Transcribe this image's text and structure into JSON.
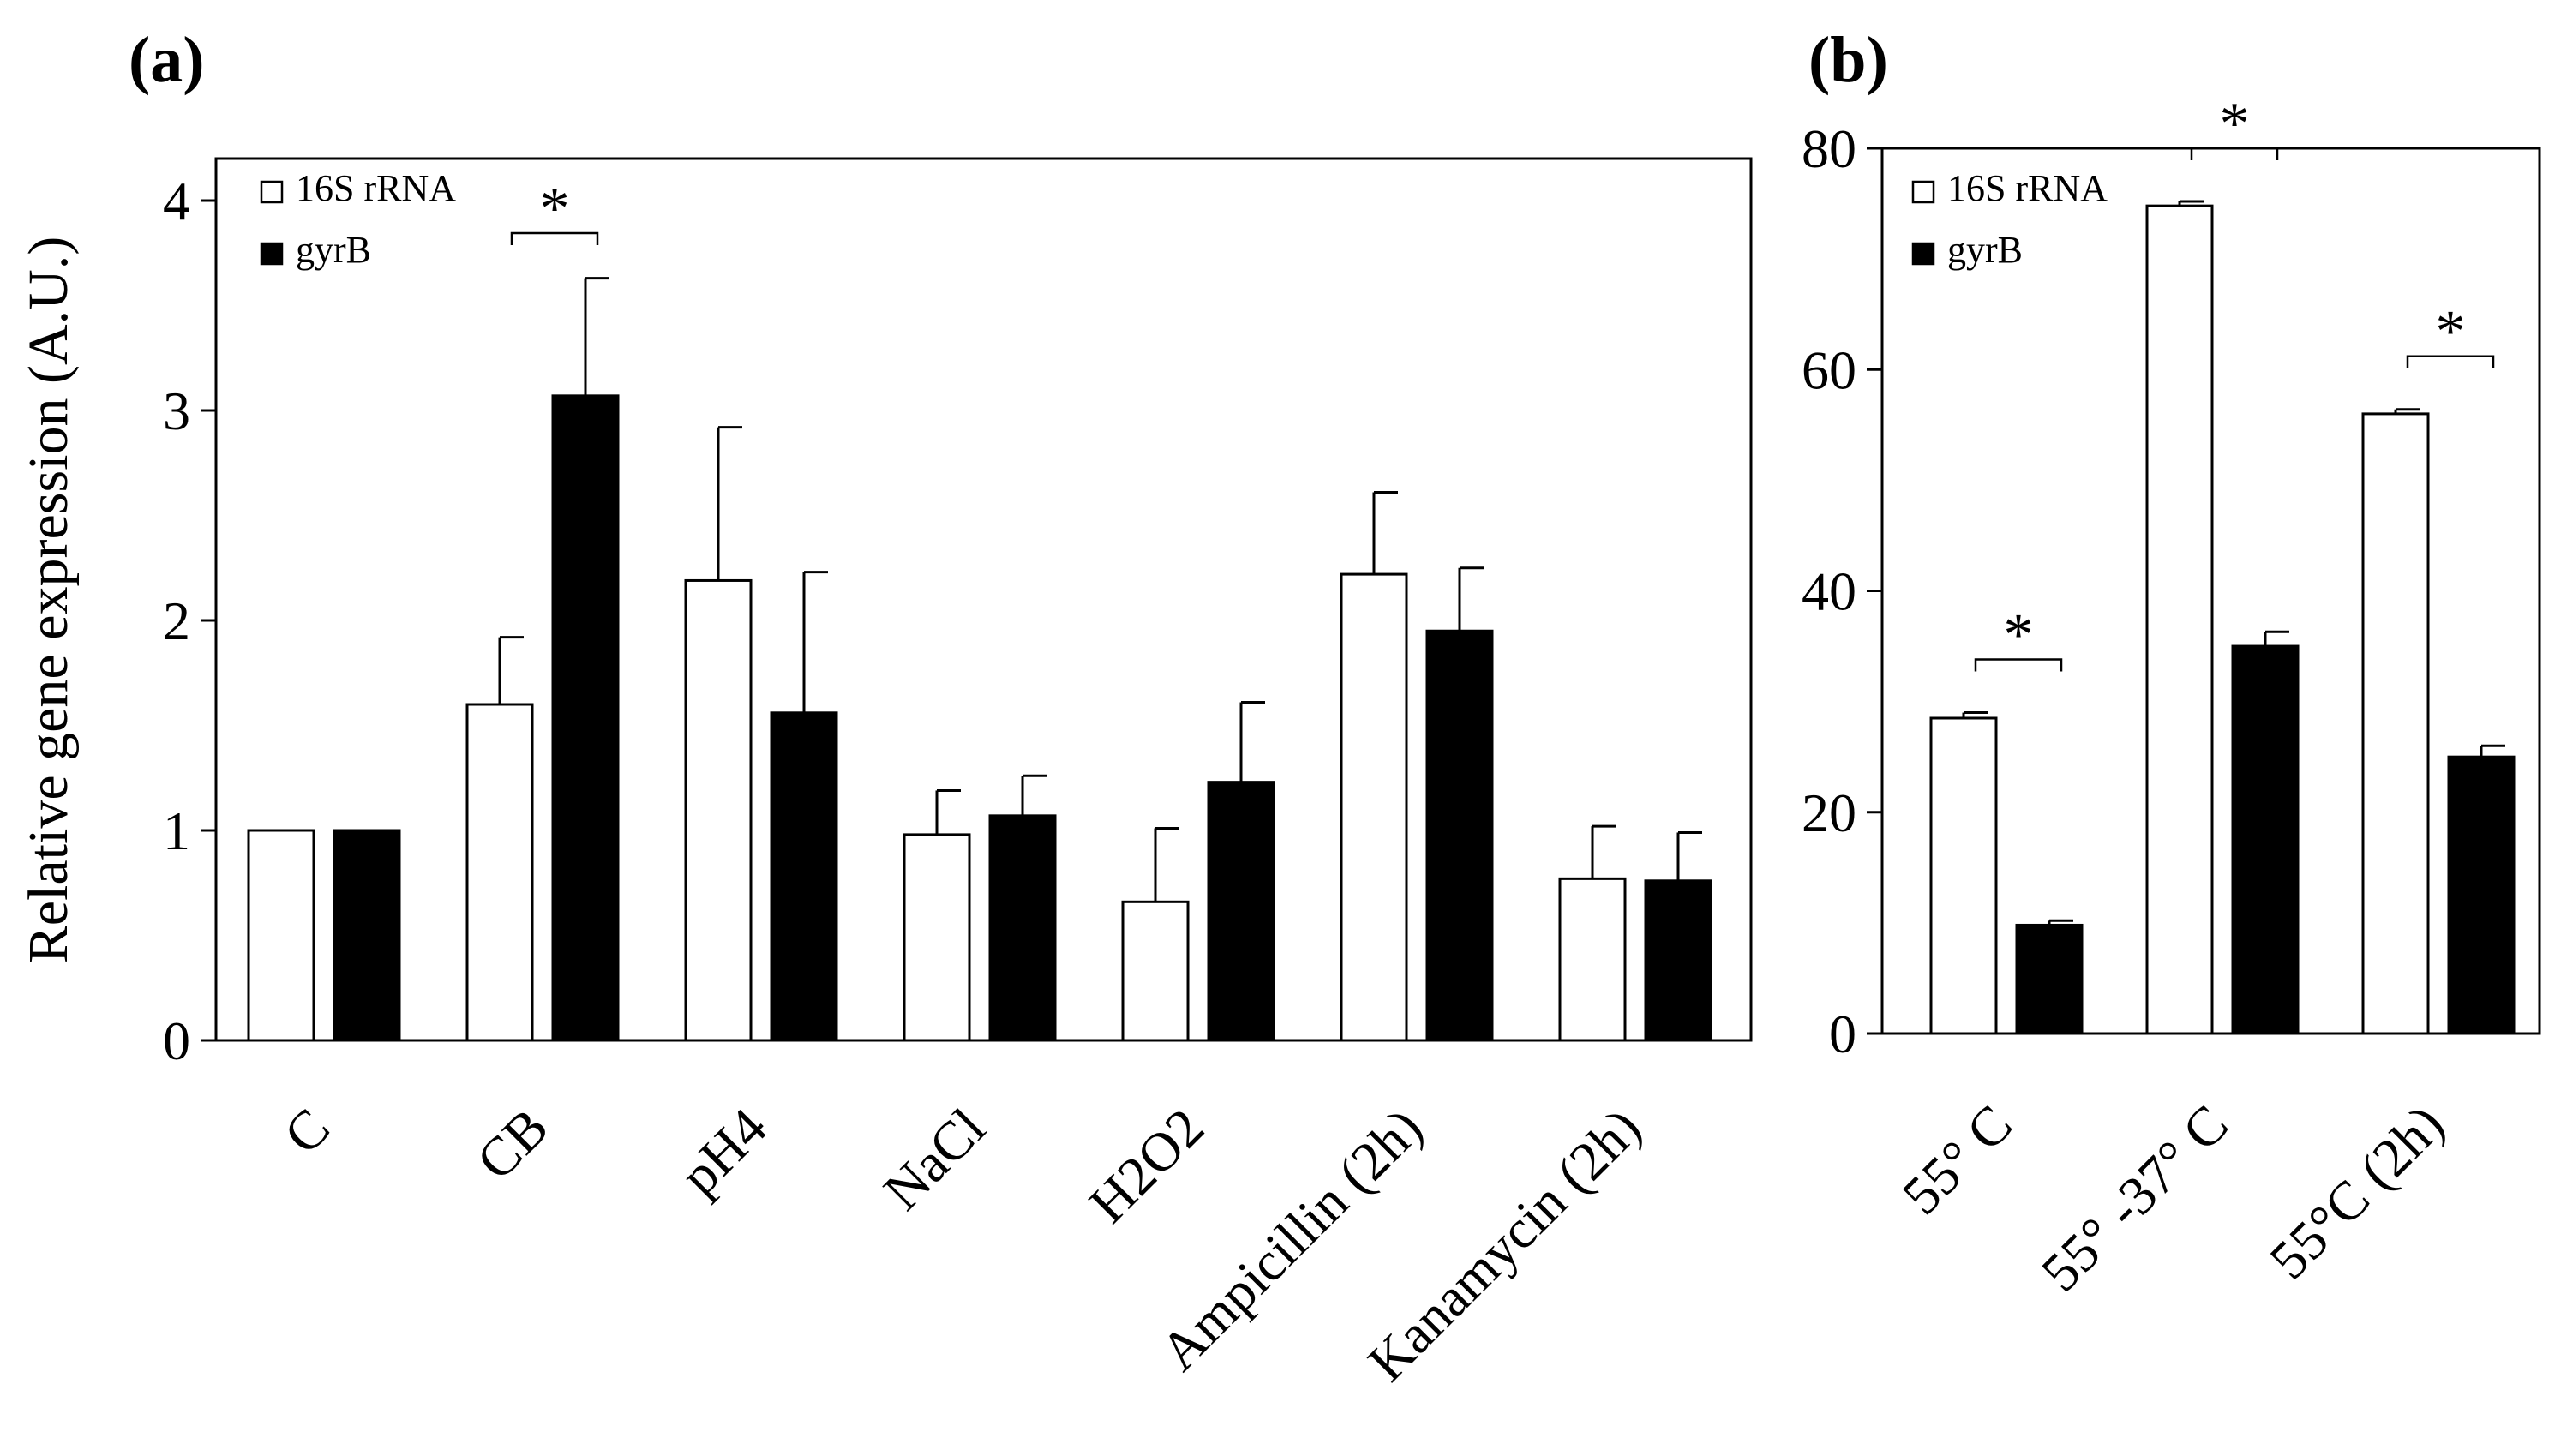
{
  "chart_data": [
    {
      "type": "bar",
      "panel_label": "(a)",
      "title": "",
      "xlabel": "",
      "ylabel": "Relative gene expression (A.U.)",
      "ylim": [
        0,
        4.2
      ],
      "yticks": [
        "0",
        "1",
        "2",
        "3",
        "4"
      ],
      "categories": [
        "C",
        "CB",
        "pH4",
        "NaCl",
        "H2O2",
        "Ampicillin (2h)",
        "Kanamycin (2h)"
      ],
      "series": [
        {
          "name": "16S rRNA",
          "color": "#ffffff",
          "values": [
            1.0,
            1.6,
            2.19,
            0.98,
            0.66,
            2.22,
            0.77
          ],
          "errors": [
            0,
            0.32,
            0.73,
            0.21,
            0.35,
            0.39,
            0.25
          ]
        },
        {
          "name": "gyrB",
          "color": "#000000",
          "values": [
            1.0,
            3.07,
            1.56,
            1.07,
            1.23,
            1.95,
            0.76
          ],
          "errors": [
            0,
            0.56,
            0.67,
            0.19,
            0.38,
            0.3,
            0.23
          ]
        }
      ],
      "significance": [
        {
          "category": "CB",
          "label": "*"
        }
      ],
      "legend": [
        "16S rRNA",
        "gyrB"
      ],
      "legend_position": "top-left",
      "grid": false
    },
    {
      "type": "bar",
      "panel_label": "(b)",
      "title": "",
      "xlabel": "",
      "ylabel": "",
      "ylim": [
        0,
        80
      ],
      "yticks": [
        "0",
        "20",
        "40",
        "60",
        "80"
      ],
      "categories": [
        "55° C",
        "55° -37° C",
        "55°C (2h)"
      ],
      "series": [
        {
          "name": "16S rRNA",
          "color": "#ffffff",
          "values": [
            28.5,
            74.8,
            56.0
          ],
          "errors": [
            0.5,
            0.4,
            0.4
          ]
        },
        {
          "name": "gyrB",
          "color": "#000000",
          "values": [
            9.8,
            35.0,
            25.0
          ],
          "errors": [
            0.4,
            1.3,
            1.0
          ]
        }
      ],
      "significance": [
        {
          "category": "55° C",
          "label": "*"
        },
        {
          "category": "55° -37° C",
          "label": "*"
        },
        {
          "category": "55°C (2h)",
          "label": "*"
        }
      ],
      "legend": [
        "16S rRNA",
        "gyrB"
      ],
      "legend_position": "top-left",
      "grid": false
    }
  ]
}
